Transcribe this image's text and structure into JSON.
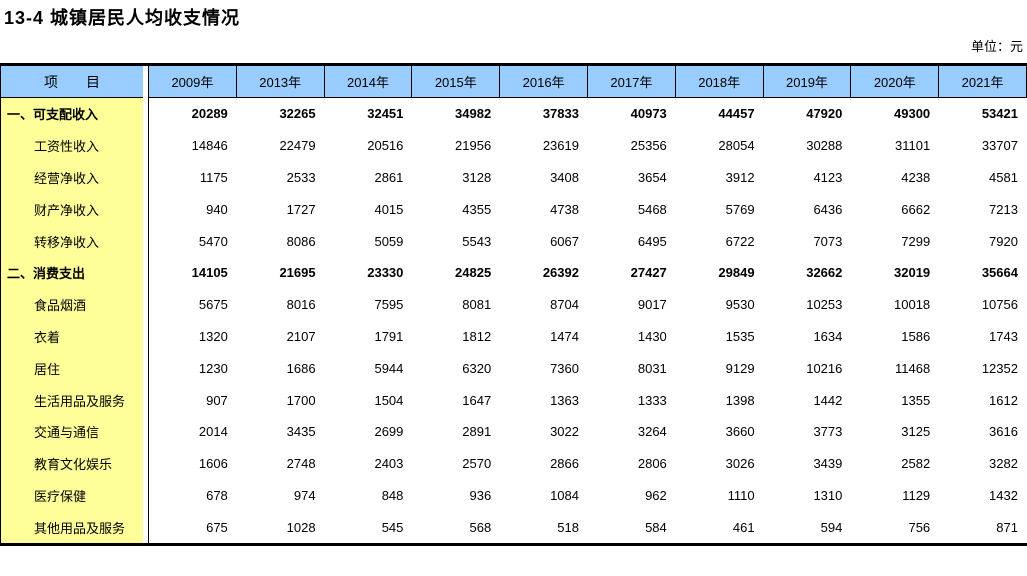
{
  "title": "13-4 城镇居民人均收支情况",
  "unit_label": "单位：元",
  "colors": {
    "header_bg": "#99CCFF",
    "stub_bg": "#FFFF99",
    "border": "#000000",
    "page_bg": "#FFFFFF"
  },
  "table": {
    "stub_header": "项　　目",
    "year_columns": [
      "2009年",
      "2013年",
      "2014年",
      "2015年",
      "2016年",
      "2017年",
      "2018年",
      "2019年",
      "2020年",
      "2021年"
    ],
    "rows": [
      {
        "label": "一、可支配收入",
        "bold": true,
        "indent": false,
        "values": [
          20289,
          32265,
          32451,
          34982,
          37833,
          40973,
          44457,
          47920,
          49300,
          53421
        ]
      },
      {
        "label": "工资性收入",
        "bold": false,
        "indent": true,
        "values": [
          14846,
          22479,
          20516,
          21956,
          23619,
          25356,
          28054,
          30288,
          31101,
          33707
        ]
      },
      {
        "label": "经营净收入",
        "bold": false,
        "indent": true,
        "values": [
          1175,
          2533,
          2861,
          3128,
          3408,
          3654,
          3912,
          4123,
          4238,
          4581
        ]
      },
      {
        "label": "财产净收入",
        "bold": false,
        "indent": true,
        "values": [
          940,
          1727,
          4015,
          4355,
          4738,
          5468,
          5769,
          6436,
          6662,
          7213
        ]
      },
      {
        "label": "转移净收入",
        "bold": false,
        "indent": true,
        "values": [
          5470,
          8086,
          5059,
          5543,
          6067,
          6495,
          6722,
          7073,
          7299,
          7920
        ]
      },
      {
        "label": "二、消费支出",
        "bold": true,
        "indent": false,
        "values": [
          14105,
          21695,
          23330,
          24825,
          26392,
          27427,
          29849,
          32662,
          32019,
          35664
        ]
      },
      {
        "label": "食品烟酒",
        "bold": false,
        "indent": true,
        "values": [
          5675,
          8016,
          7595,
          8081,
          8704,
          9017,
          9530,
          10253,
          10018,
          10756
        ]
      },
      {
        "label": "衣着",
        "bold": false,
        "indent": true,
        "values": [
          1320,
          2107,
          1791,
          1812,
          1474,
          1430,
          1535,
          1634,
          1586,
          1743
        ]
      },
      {
        "label": "居住",
        "bold": false,
        "indent": true,
        "values": [
          1230,
          1686,
          5944,
          6320,
          7360,
          8031,
          9129,
          10216,
          11468,
          12352
        ]
      },
      {
        "label": "生活用品及服务",
        "bold": false,
        "indent": true,
        "values": [
          907,
          1700,
          1504,
          1647,
          1363,
          1333,
          1398,
          1442,
          1355,
          1612
        ]
      },
      {
        "label": "交通与通信",
        "bold": false,
        "indent": true,
        "values": [
          2014,
          3435,
          2699,
          2891,
          3022,
          3264,
          3660,
          3773,
          3125,
          3616
        ]
      },
      {
        "label": "教育文化娱乐",
        "bold": false,
        "indent": true,
        "values": [
          1606,
          2748,
          2403,
          2570,
          2866,
          2806,
          3026,
          3439,
          2582,
          3282
        ]
      },
      {
        "label": "医疗保健",
        "bold": false,
        "indent": true,
        "values": [
          678,
          974,
          848,
          936,
          1084,
          962,
          1110,
          1310,
          1129,
          1432
        ]
      },
      {
        "label": "其他用品及服务",
        "bold": false,
        "indent": true,
        "values": [
          675,
          1028,
          545,
          568,
          518,
          584,
          461,
          594,
          756,
          871
        ]
      }
    ]
  }
}
